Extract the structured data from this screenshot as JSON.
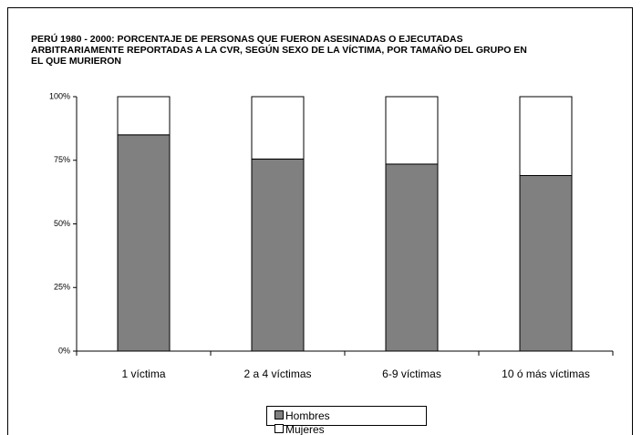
{
  "chart_data": {
    "type": "stacked_bar",
    "title": "PERÚ 1980 - 2000: PORCENTAJE DE PERSONAS QUE FUERON ASESINADAS O EJECUTADAS ARBITRARIAMENTE REPORTADAS A LA CVR, SEGÚN SEXO DE LA VÍCTIMA, POR TAMAÑO DEL GRUPO EN EL QUE MURIERON",
    "categories": [
      "1 víctima",
      "2 a 4 víctimas",
      "6-9 víctimas",
      "10 ó más víctimas"
    ],
    "series": [
      {
        "name": "Hombres",
        "color": "#808080",
        "values": [
          85,
          75.5,
          73.5,
          69
        ]
      },
      {
        "name": "Mujeres",
        "color": "#ffffff",
        "values": [
          15,
          24.5,
          26.5,
          31
        ]
      }
    ],
    "ylim": [
      0,
      100
    ],
    "yticks": [
      {
        "value": 0,
        "label": "0%"
      },
      {
        "value": 25,
        "label": "25%"
      },
      {
        "value": 50,
        "label": "50%"
      },
      {
        "value": 75,
        "label": "75%"
      },
      {
        "value": 100,
        "label": "100%"
      }
    ],
    "legend": "bottom"
  }
}
